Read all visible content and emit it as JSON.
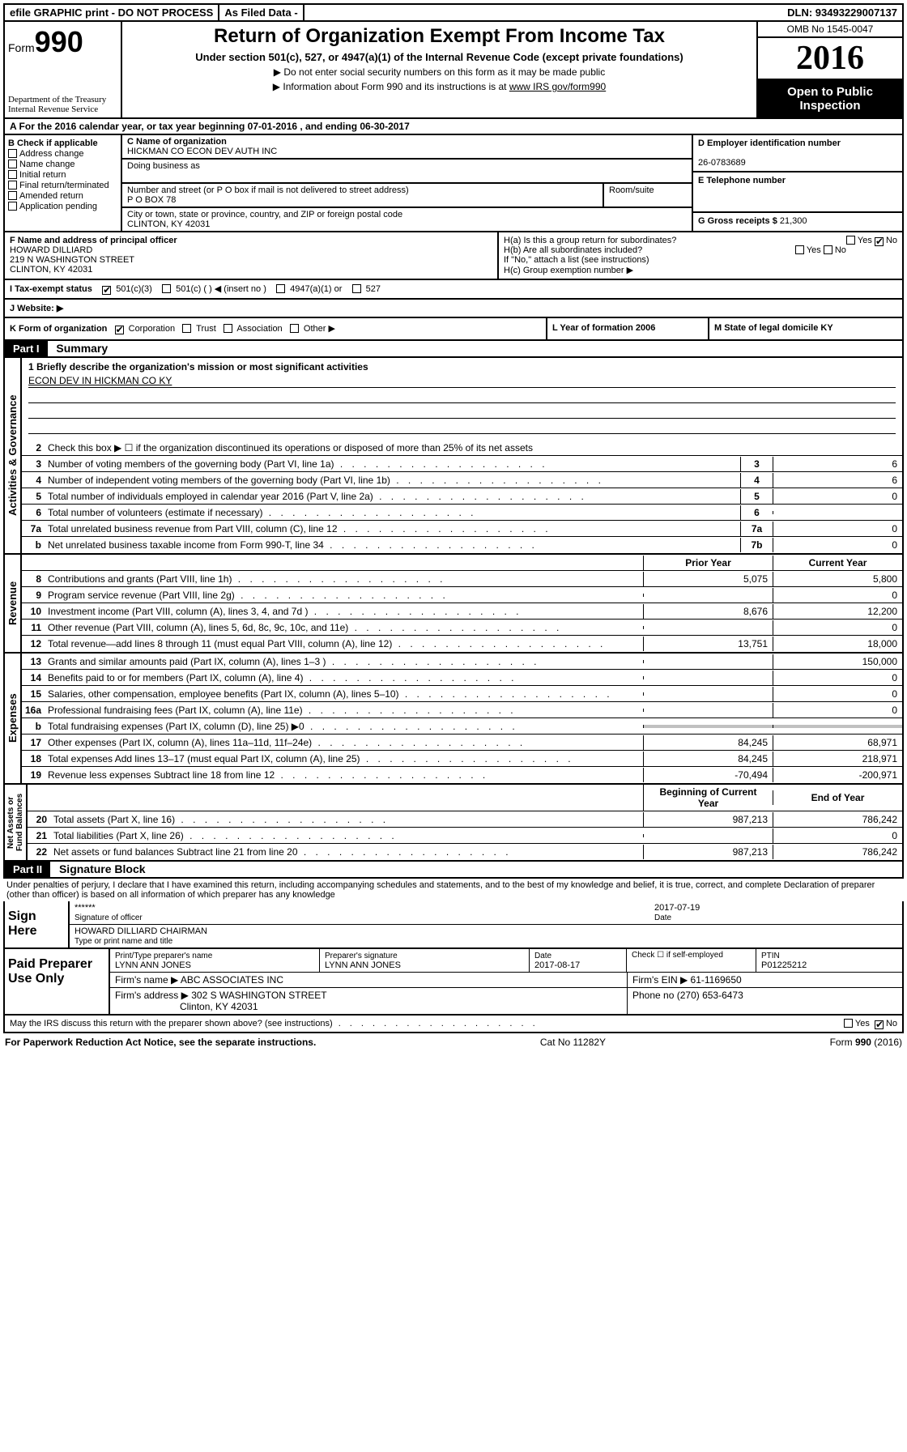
{
  "topbar": {
    "efile": "efile GRAPHIC print - DO NOT PROCESS",
    "asFiled": "As Filed Data -",
    "dln": "DLN: 93493229007137"
  },
  "header": {
    "formLabel": "Form",
    "formNum": "990",
    "dept1": "Department of the Treasury",
    "dept2": "Internal Revenue Service",
    "title": "Return of Organization Exempt From Income Tax",
    "subtitle": "Under section 501(c), 527, or 4947(a)(1) of the Internal Revenue Code (except private foundations)",
    "arrow1": "▶ Do not enter social security numbers on this form as it may be made public",
    "arrow2": "▶ Information about Form 990 and its instructions is at ",
    "link": "www IRS gov/form990",
    "omb": "OMB No 1545-0047",
    "year": "2016",
    "open": "Open to Public Inspection"
  },
  "rowA": "A  For the 2016 calendar year, or tax year beginning 07-01-2016   , and ending 06-30-2017",
  "boxB": {
    "title": "B Check if applicable",
    "opts": [
      "Address change",
      "Name change",
      "Initial return",
      "Final return/terminated",
      "Amended return",
      "Application pending"
    ]
  },
  "boxC": {
    "nameLabel": "C Name of organization",
    "name": "HICKMAN CO ECON DEV AUTH INC",
    "dba": "Doing business as",
    "addrLabel": "Number and street (or P O  box if mail is not delivered to street address)",
    "addr": "P O BOX 78",
    "room": "Room/suite",
    "cityLabel": "City or town, state or province, country, and ZIP or foreign postal code",
    "city": "CLINTON, KY  42031"
  },
  "boxD": {
    "label": "D Employer identification number",
    "val": "26-0783689"
  },
  "boxE": {
    "label": "E Telephone number"
  },
  "boxG": {
    "label": "G Gross receipts $ ",
    "val": "21,300"
  },
  "boxF": {
    "label": "F  Name and address of principal officer",
    "name": "HOWARD DILLIARD",
    "addr": "219 N WASHINGTON STREET",
    "city": "CLINTON, KY  42031"
  },
  "boxH": {
    "ha": "H(a)  Is this a group return for subordinates?",
    "hb": "H(b)  Are all subordinates included?",
    "ifno": "If \"No,\" attach a list  (see instructions)",
    "hc": "H(c)  Group exemption number ▶"
  },
  "boxI": {
    "label": "I   Tax-exempt status",
    "o1": "501(c)(3)",
    "o2": "501(c) (  ) ◀ (insert no )",
    "o3": "4947(a)(1) or",
    "o4": "527"
  },
  "boxJ": "J   Website: ▶",
  "boxK": {
    "label": "K Form of organization",
    "o1": "Corporation",
    "o2": "Trust",
    "o3": "Association",
    "o4": "Other ▶"
  },
  "boxL": {
    "label": "L Year of formation  2006"
  },
  "boxM": {
    "label": "M State of legal domicile  KY"
  },
  "part1": {
    "bar": "Part I",
    "title": "Summary",
    "q1": "1  Briefly describe the organization's mission or most significant activities",
    "mission": "ECON DEV IN HICKMAN CO KY",
    "q2": "Check this box ▶ ☐ if the organization discontinued its operations or disposed of more than 25% of its net assets"
  },
  "govLines": [
    {
      "n": "3",
      "d": "Number of voting members of the governing body (Part VI, line 1a)",
      "b": "3",
      "v": "6"
    },
    {
      "n": "4",
      "d": "Number of independent voting members of the governing body (Part VI, line 1b)",
      "b": "4",
      "v": "6"
    },
    {
      "n": "5",
      "d": "Total number of individuals employed in calendar year 2016 (Part V, line 2a)",
      "b": "5",
      "v": "0"
    },
    {
      "n": "6",
      "d": "Total number of volunteers (estimate if necessary)",
      "b": "6",
      "v": ""
    },
    {
      "n": "7a",
      "d": "Total unrelated business revenue from Part VIII, column (C), line 12",
      "b": "7a",
      "v": "0"
    },
    {
      "n": "b",
      "d": "Net unrelated business taxable income from Form 990-T, line 34",
      "b": "7b",
      "v": "0"
    }
  ],
  "colHdr": {
    "prior": "Prior Year",
    "current": "Current Year"
  },
  "revLines": [
    {
      "n": "8",
      "d": "Contributions and grants (Part VIII, line 1h)",
      "p": "5,075",
      "c": "5,800"
    },
    {
      "n": "9",
      "d": "Program service revenue (Part VIII, line 2g)",
      "p": "",
      "c": "0"
    },
    {
      "n": "10",
      "d": "Investment income (Part VIII, column (A), lines 3, 4, and 7d )",
      "p": "8,676",
      "c": "12,200"
    },
    {
      "n": "11",
      "d": "Other revenue (Part VIII, column (A), lines 5, 6d, 8c, 9c, 10c, and 11e)",
      "p": "",
      "c": "0"
    },
    {
      "n": "12",
      "d": "Total revenue—add lines 8 through 11 (must equal Part VIII, column (A), line 12)",
      "p": "13,751",
      "c": "18,000"
    }
  ],
  "expLines": [
    {
      "n": "13",
      "d": "Grants and similar amounts paid (Part IX, column (A), lines 1–3 )",
      "p": "",
      "c": "150,000"
    },
    {
      "n": "14",
      "d": "Benefits paid to or for members (Part IX, column (A), line 4)",
      "p": "",
      "c": "0"
    },
    {
      "n": "15",
      "d": "Salaries, other compensation, employee benefits (Part IX, column (A), lines 5–10)",
      "p": "",
      "c": "0"
    },
    {
      "n": "16a",
      "d": "Professional fundraising fees (Part IX, column (A), line 11e)",
      "p": "",
      "c": "0"
    },
    {
      "n": "b",
      "d": "Total fundraising expenses (Part IX, column (D), line 25) ▶0",
      "p": "",
      "c": "",
      "gray": true
    },
    {
      "n": "17",
      "d": "Other expenses (Part IX, column (A), lines 11a–11d, 11f–24e)",
      "p": "84,245",
      "c": "68,971"
    },
    {
      "n": "18",
      "d": "Total expenses  Add lines 13–17 (must equal Part IX, column (A), line 25)",
      "p": "84,245",
      "c": "218,971"
    },
    {
      "n": "19",
      "d": "Revenue less expenses  Subtract line 18 from line 12",
      "p": "-70,494",
      "c": "-200,971"
    }
  ],
  "naHdr": {
    "beg": "Beginning of Current Year",
    "end": "End of Year"
  },
  "naLines": [
    {
      "n": "20",
      "d": "Total assets (Part X, line 16)",
      "p": "987,213",
      "c": "786,242"
    },
    {
      "n": "21",
      "d": "Total liabilities (Part X, line 26)",
      "p": "",
      "c": "0"
    },
    {
      "n": "22",
      "d": "Net assets or fund balances  Subtract line 21 from line 20",
      "p": "987,213",
      "c": "786,242"
    }
  ],
  "part2": {
    "bar": "Part II",
    "title": "Signature Block",
    "declare": "Under penalties of perjury, I declare that I have examined this return, including accompanying schedules and statements, and to the best of my knowledge and belief, it is true, correct, and complete  Declaration of preparer (other than officer) is based on all information of which preparer has any knowledge"
  },
  "sign": {
    "label": "Sign Here",
    "stars": "******",
    "sigOf": "Signature of officer",
    "date": "2017-07-19",
    "dateL": "Date",
    "name": "HOWARD DILLIARD CHAIRMAN",
    "typeL": "Type or print name and title"
  },
  "paid": {
    "label": "Paid Preparer Use Only",
    "h1": "Print/Type preparer's name",
    "h2": "Preparer's signature",
    "h3": "Date",
    "h4": "Check ☐ if self-employed",
    "h5": "PTIN",
    "name": "LYNN ANN JONES",
    "sig": "LYNN ANN JONES",
    "date": "2017-08-17",
    "ptin": "P01225212",
    "firmL": "Firm's name    ▶",
    "firm": "ABC ASSOCIATES INC",
    "einL": "Firm's EIN ▶",
    "ein": "61-1169650",
    "addrL": "Firm's address ▶",
    "addr": "302 S WASHINGTON STREET",
    "city": "Clinton, KY  42031",
    "phoneL": "Phone no ",
    "phone": "(270) 653-6473"
  },
  "discuss": "May the IRS discuss this return with the preparer shown above? (see instructions)",
  "footer": {
    "left": "For Paperwork Reduction Act Notice, see the separate instructions.",
    "mid": "Cat  No  11282Y",
    "right": "Form 990 (2016)"
  }
}
